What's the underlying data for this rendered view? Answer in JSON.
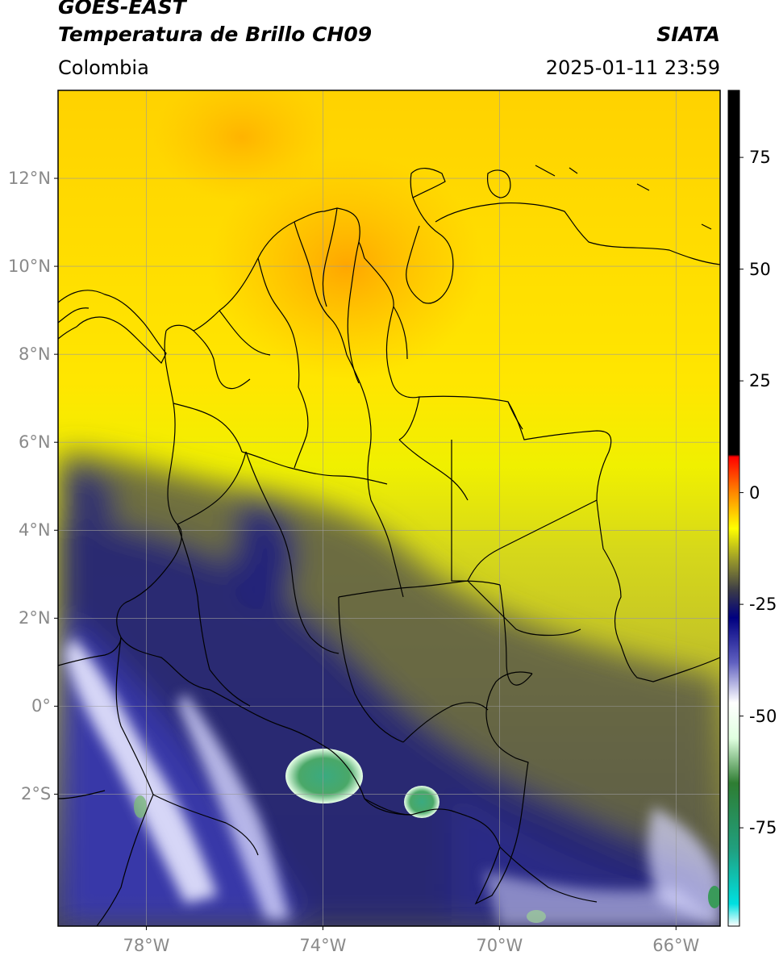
{
  "header": {
    "satellite": "GOES-EAST",
    "product": "Temperatura de Brillo CH09",
    "region": "Colombia",
    "source": "SIATA",
    "datetime": "2025-01-11 23:59"
  },
  "map": {
    "lat_ticks": [
      {
        "value": 12,
        "label": "12°N"
      },
      {
        "value": 10,
        "label": "10°N"
      },
      {
        "value": 8,
        "label": "8°N"
      },
      {
        "value": 6,
        "label": "6°N"
      },
      {
        "value": 4,
        "label": "4°N"
      },
      {
        "value": 2,
        "label": "2°N"
      },
      {
        "value": 0,
        "label": "0°"
      },
      {
        "value": -2,
        "label": "2°S"
      }
    ],
    "lon_ticks": [
      {
        "value": -78,
        "label": "78°W"
      },
      {
        "value": -74,
        "label": "74°W"
      },
      {
        "value": -70,
        "label": "70°W"
      },
      {
        "value": -66,
        "label": "66°W"
      }
    ],
    "lon_range": [
      -80,
      -65
    ],
    "lat_range": [
      -5,
      14
    ],
    "grid": true
  },
  "colorbar": {
    "range": [
      -97,
      90
    ],
    "ticks": [
      {
        "value": 75,
        "label": "75"
      },
      {
        "value": 50,
        "label": "50"
      },
      {
        "value": 25,
        "label": "25"
      },
      {
        "value": 0,
        "label": "0"
      },
      {
        "value": -25,
        "label": "-25"
      },
      {
        "value": -50,
        "label": "-50"
      },
      {
        "value": -75,
        "label": "-75"
      }
    ],
    "stops": [
      {
        "value": -97,
        "color": "#ffffff"
      },
      {
        "value": -92,
        "color": "#00e0e0"
      },
      {
        "value": -80,
        "color": "#20a080"
      },
      {
        "value": -65,
        "color": "#2e7d32"
      },
      {
        "value": -55,
        "color": "#e0ffe0"
      },
      {
        "value": -47,
        "color": "#ffffff"
      },
      {
        "value": -38,
        "color": "#6060c0"
      },
      {
        "value": -28,
        "color": "#000080"
      },
      {
        "value": -22,
        "color": "#3a3a48"
      },
      {
        "value": -15,
        "color": "#9a9a2a"
      },
      {
        "value": -8,
        "color": "#ffff00"
      },
      {
        "value": 0,
        "color": "#ff8800"
      },
      {
        "value": 8,
        "color": "#ff0000"
      },
      {
        "value": 8.5,
        "color": "#000000"
      },
      {
        "value": 90,
        "color": "#000000"
      }
    ]
  }
}
